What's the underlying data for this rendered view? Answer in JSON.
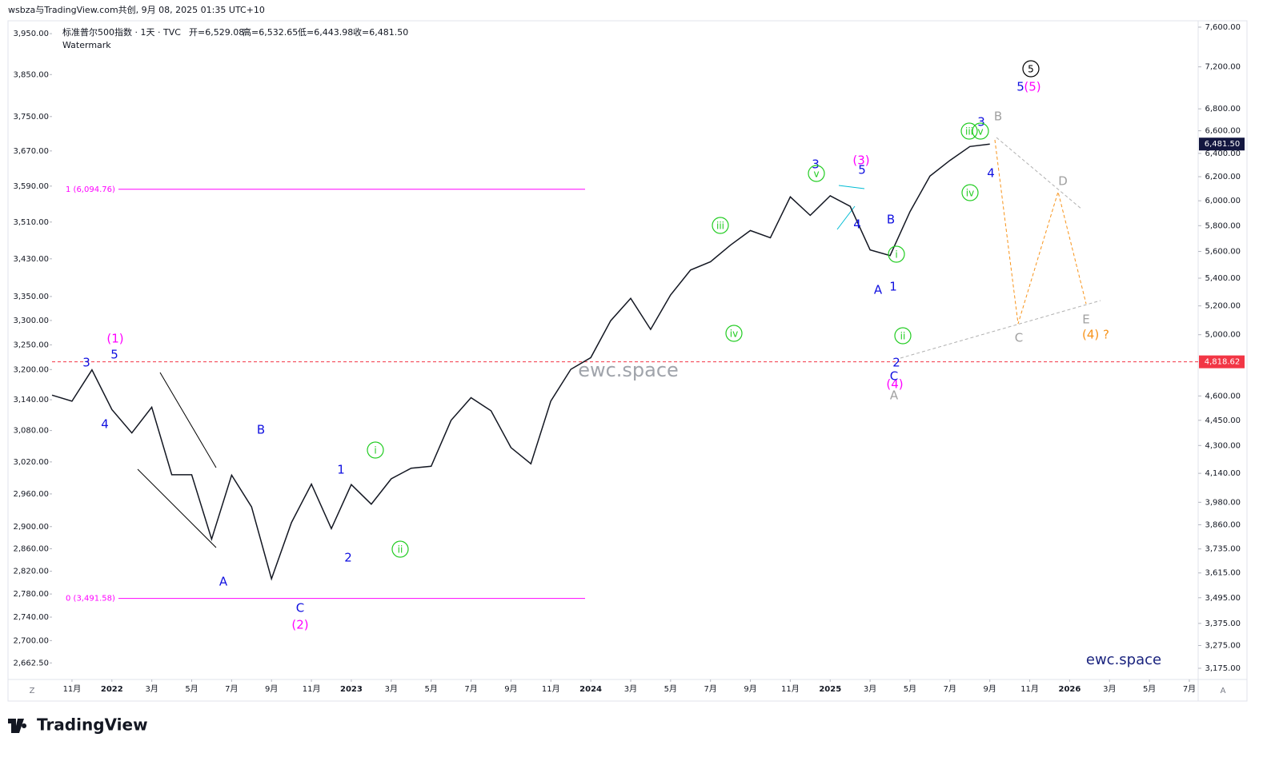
{
  "header": {
    "share": "wsbza与TradingView.com共创, 9月 08, 2025 01:35 UTC+10",
    "symbol": "标准普尔500指数 · 1天 · TVC",
    "ohlc": [
      "开=6,529.08",
      "高=6,532.65",
      "低=6,443.98",
      "收=6,481.50"
    ],
    "note": "Watermark",
    "logo": "TradingView"
  },
  "chart_data": {
    "type": "line",
    "color": "#131722",
    "log": true,
    "x": [
      "2021-10",
      "2021-11",
      "2021-12",
      "2022-01",
      "2022-02",
      "2022-03",
      "2022-04",
      "2022-05",
      "2022-06",
      "2022-07",
      "2022-08",
      "2022-09",
      "2022-10",
      "2022-11",
      "2022-12",
      "2023-01",
      "2023-02",
      "2023-03",
      "2023-04",
      "2023-05",
      "2023-06",
      "2023-07",
      "2023-08",
      "2023-09",
      "2023-10",
      "2023-11",
      "2023-12",
      "2024-01",
      "2024-02",
      "2024-03",
      "2024-04",
      "2024-05",
      "2024-06",
      "2024-07",
      "2024-08",
      "2024-09",
      "2024-10",
      "2024-11",
      "2024-12",
      "2025-01",
      "2025-02",
      "2025-03",
      "2025-04",
      "2025-05",
      "2025-06",
      "2025-07",
      "2025-08",
      "2025-09"
    ],
    "values": [
      4605,
      4567,
      4766,
      4516,
      4374,
      4530,
      4132,
      4132,
      3785,
      4130,
      3955,
      3586,
      3872,
      4080,
      3840,
      4077,
      3970,
      4109,
      4169,
      4180,
      4450,
      4589,
      4508,
      4288,
      4194,
      4568,
      4770,
      4846,
      5096,
      5254,
      5036,
      5278,
      5460,
      5522,
      5648,
      5762,
      5705,
      6032,
      5882,
      6041,
      5955,
      5612,
      5569,
      5912,
      6205,
      6339,
      6460,
      6481.5
    ],
    "xlim": [
      "2021-10",
      "2026-07"
    ],
    "xticks": [
      {
        "value": "2021-11",
        "label": "11月"
      },
      {
        "value": "2022-01",
        "label": "2022"
      },
      {
        "value": "2022-03",
        "label": "3月"
      },
      {
        "value": "2022-05",
        "label": "5月"
      },
      {
        "value": "2022-07",
        "label": "7月"
      },
      {
        "value": "2022-09",
        "label": "9月"
      },
      {
        "value": "2022-11",
        "label": "11月"
      },
      {
        "value": "2023-01",
        "label": "2023"
      },
      {
        "value": "2023-03",
        "label": "3月"
      },
      {
        "value": "2023-05",
        "label": "5月"
      },
      {
        "value": "2023-07",
        "label": "7月"
      },
      {
        "value": "2023-09",
        "label": "9月"
      },
      {
        "value": "2023-11",
        "label": "11月"
      },
      {
        "value": "2024-01",
        "label": "2024"
      },
      {
        "value": "2024-03",
        "label": "3月"
      },
      {
        "value": "2024-05",
        "label": "5月"
      },
      {
        "value": "2024-07",
        "label": "7月"
      },
      {
        "value": "2024-09",
        "label": "9月"
      },
      {
        "value": "2024-11",
        "label": "11月"
      },
      {
        "value": "2025-01",
        "label": "2025"
      },
      {
        "value": "2025-03",
        "label": "3月"
      },
      {
        "value": "2025-05",
        "label": "5月"
      },
      {
        "value": "2025-07",
        "label": "7月"
      },
      {
        "value": "2025-09",
        "label": "9月"
      },
      {
        "value": "2025-11",
        "label": "11月"
      },
      {
        "value": "2026-01",
        "label": "2026"
      },
      {
        "value": "2026-03",
        "label": "3月"
      },
      {
        "value": "2026-05",
        "label": "5月"
      },
      {
        "value": "2026-07",
        "label": "7月"
      }
    ],
    "ylim": [
      3127,
      7666
    ],
    "yticks": [
      {
        "value": 7600,
        "label": "7,600.00"
      },
      {
        "value": 7200,
        "label": "7,200.00"
      },
      {
        "value": 6800,
        "label": "6,800.00"
      },
      {
        "value": 6600,
        "label": "6,600.00"
      },
      {
        "value": 6400,
        "label": "6,400.00"
      },
      {
        "value": 6200,
        "label": "6,200.00"
      },
      {
        "value": 6000,
        "label": "6,000.00"
      },
      {
        "value": 5800,
        "label": "5,800.00"
      },
      {
        "value": 5600,
        "label": "5,600.00"
      },
      {
        "value": 5400,
        "label": "5,400.00"
      },
      {
        "value": 5200,
        "label": "5,200.00"
      },
      {
        "value": 5000,
        "label": "5,000.00"
      },
      {
        "value": 4600,
        "label": "4,600.00"
      },
      {
        "value": 4450,
        "label": "4,450.00"
      },
      {
        "value": 4300,
        "label": "4,300.00"
      },
      {
        "value": 4140,
        "label": "4,140.00"
      },
      {
        "value": 3980,
        "label": "3,980.00"
      },
      {
        "value": 3860,
        "label": "3,860.00"
      },
      {
        "value": 3735,
        "label": "3,735.00"
      },
      {
        "value": 3615,
        "label": "3,615.00"
      },
      {
        "value": 3495,
        "label": "3,495.00"
      },
      {
        "value": 3375,
        "label": "3,375.00"
      },
      {
        "value": 3275,
        "label": "3,275.00"
      },
      {
        "value": 3175,
        "label": "3,175.00"
      }
    ],
    "y2lim": [
      2635,
      3982
    ],
    "y2ticks": [
      {
        "value": 3950,
        "label": "3,950.00"
      },
      {
        "value": 3850,
        "label": "3,850.00"
      },
      {
        "value": 3750,
        "label": "3,750.00"
      },
      {
        "value": 3670,
        "label": "3,670.00"
      },
      {
        "value": 3590,
        "label": "3,590.00"
      },
      {
        "value": 3510,
        "label": "3,510.00"
      },
      {
        "value": 3430,
        "label": "3,430.00"
      },
      {
        "value": 3350,
        "label": "3,350.00"
      },
      {
        "value": 3300,
        "label": "3,300.00"
      },
      {
        "value": 3250,
        "label": "3,250.00"
      },
      {
        "value": 3200,
        "label": "3,200.00"
      },
      {
        "value": 3140,
        "label": "3,140.00"
      },
      {
        "value": 3080,
        "label": "3,080.00"
      },
      {
        "value": 3020,
        "label": "3,020.00"
      },
      {
        "value": 2960,
        "label": "2,960.00"
      },
      {
        "value": 2900,
        "label": "2,900.00"
      },
      {
        "value": 2860,
        "label": "2,860.00"
      },
      {
        "value": 2820,
        "label": "2,820.00"
      },
      {
        "value": 2780,
        "label": "2,780.00"
      },
      {
        "value": 2740,
        "label": "2,740.00"
      },
      {
        "value": 2700,
        "label": "2,700.00"
      },
      {
        "value": 2662.5,
        "label": "2,662.50"
      }
    ],
    "fib_levels": [
      {
        "value": 6094.76,
        "label": "1 (6,094.76)",
        "color": "#ff00ff"
      },
      {
        "value": 3491.58,
        "label": "0 (3,491.58)",
        "color": "#ff00ff"
      }
    ],
    "hline": {
      "value": 4818.62,
      "label": "4,818.62",
      "color": "#f23645"
    },
    "last_price": {
      "value": 6481.5,
      "label": "6,481.50",
      "color": "#131740"
    },
    "watermarks": [
      "ewc.space",
      "ewc.space"
    ],
    "corner_labels": [
      "Z",
      "A"
    ],
    "annotations": [
      {
        "text": "(1)",
        "color": "#ff00ff"
      },
      {
        "text": "(2)",
        "color": "#ff00ff"
      },
      {
        "text": "(3)",
        "color": "#ff00ff"
      },
      {
        "text": "(4)",
        "color": "#ff00ff"
      },
      {
        "text": "(5)",
        "color": "#ff00ff"
      },
      {
        "text": "3",
        "color": "#1010e0"
      },
      {
        "text": "5",
        "color": "#1010e0"
      },
      {
        "text": "4",
        "color": "#1010e0"
      },
      {
        "text": "A",
        "color": "#1010e0"
      },
      {
        "text": "B",
        "color": "#1010e0"
      },
      {
        "text": "C",
        "color": "#1010e0"
      },
      {
        "text": "1",
        "color": "#1010e0"
      },
      {
        "text": "2",
        "color": "#1010e0"
      },
      {
        "text": "3",
        "color": "#1010e0"
      },
      {
        "text": "5",
        "color": "#1010e0"
      },
      {
        "text": "4",
        "color": "#1010e0"
      },
      {
        "text": "B",
        "color": "#1010e0"
      },
      {
        "text": "A",
        "color": "#1010e0"
      },
      {
        "text": "1",
        "color": "#1010e0"
      },
      {
        "text": "2",
        "color": "#1010e0"
      },
      {
        "text": "C",
        "color": "#1010e0"
      },
      {
        "text": "3",
        "color": "#1010e0"
      },
      {
        "text": "4",
        "color": "#1010e0"
      },
      {
        "text": "5",
        "color": "#1010e0"
      },
      {
        "text": "i",
        "color": "#22cc22",
        "circled": true
      },
      {
        "text": "ii",
        "color": "#22cc22",
        "circled": true
      },
      {
        "text": "iii",
        "color": "#22cc22",
        "circled": true
      },
      {
        "text": "iv",
        "color": "#22cc22",
        "circled": true
      },
      {
        "text": "v",
        "color": "#22cc22",
        "circled": true
      },
      {
        "text": "i",
        "color": "#22cc22",
        "circled": true
      },
      {
        "text": "ii",
        "color": "#22cc22",
        "circled": true
      },
      {
        "text": "iii",
        "color": "#22cc22",
        "circled": true
      },
      {
        "text": "v",
        "color": "#22cc22",
        "circled": true
      },
      {
        "text": "iv",
        "color": "#22cc22",
        "circled": true
      },
      {
        "text": "5",
        "color": "#000000",
        "circled": true
      },
      {
        "text": "B",
        "color": "#a0a0a0"
      },
      {
        "text": "D",
        "color": "#a0a0a0"
      },
      {
        "text": "C",
        "color": "#a0a0a0"
      },
      {
        "text": "E",
        "color": "#a0a0a0"
      },
      {
        "text": "A",
        "color": "#a0a0a0"
      },
      {
        "text": "(4) ?",
        "color": "#f7931a"
      }
    ]
  }
}
